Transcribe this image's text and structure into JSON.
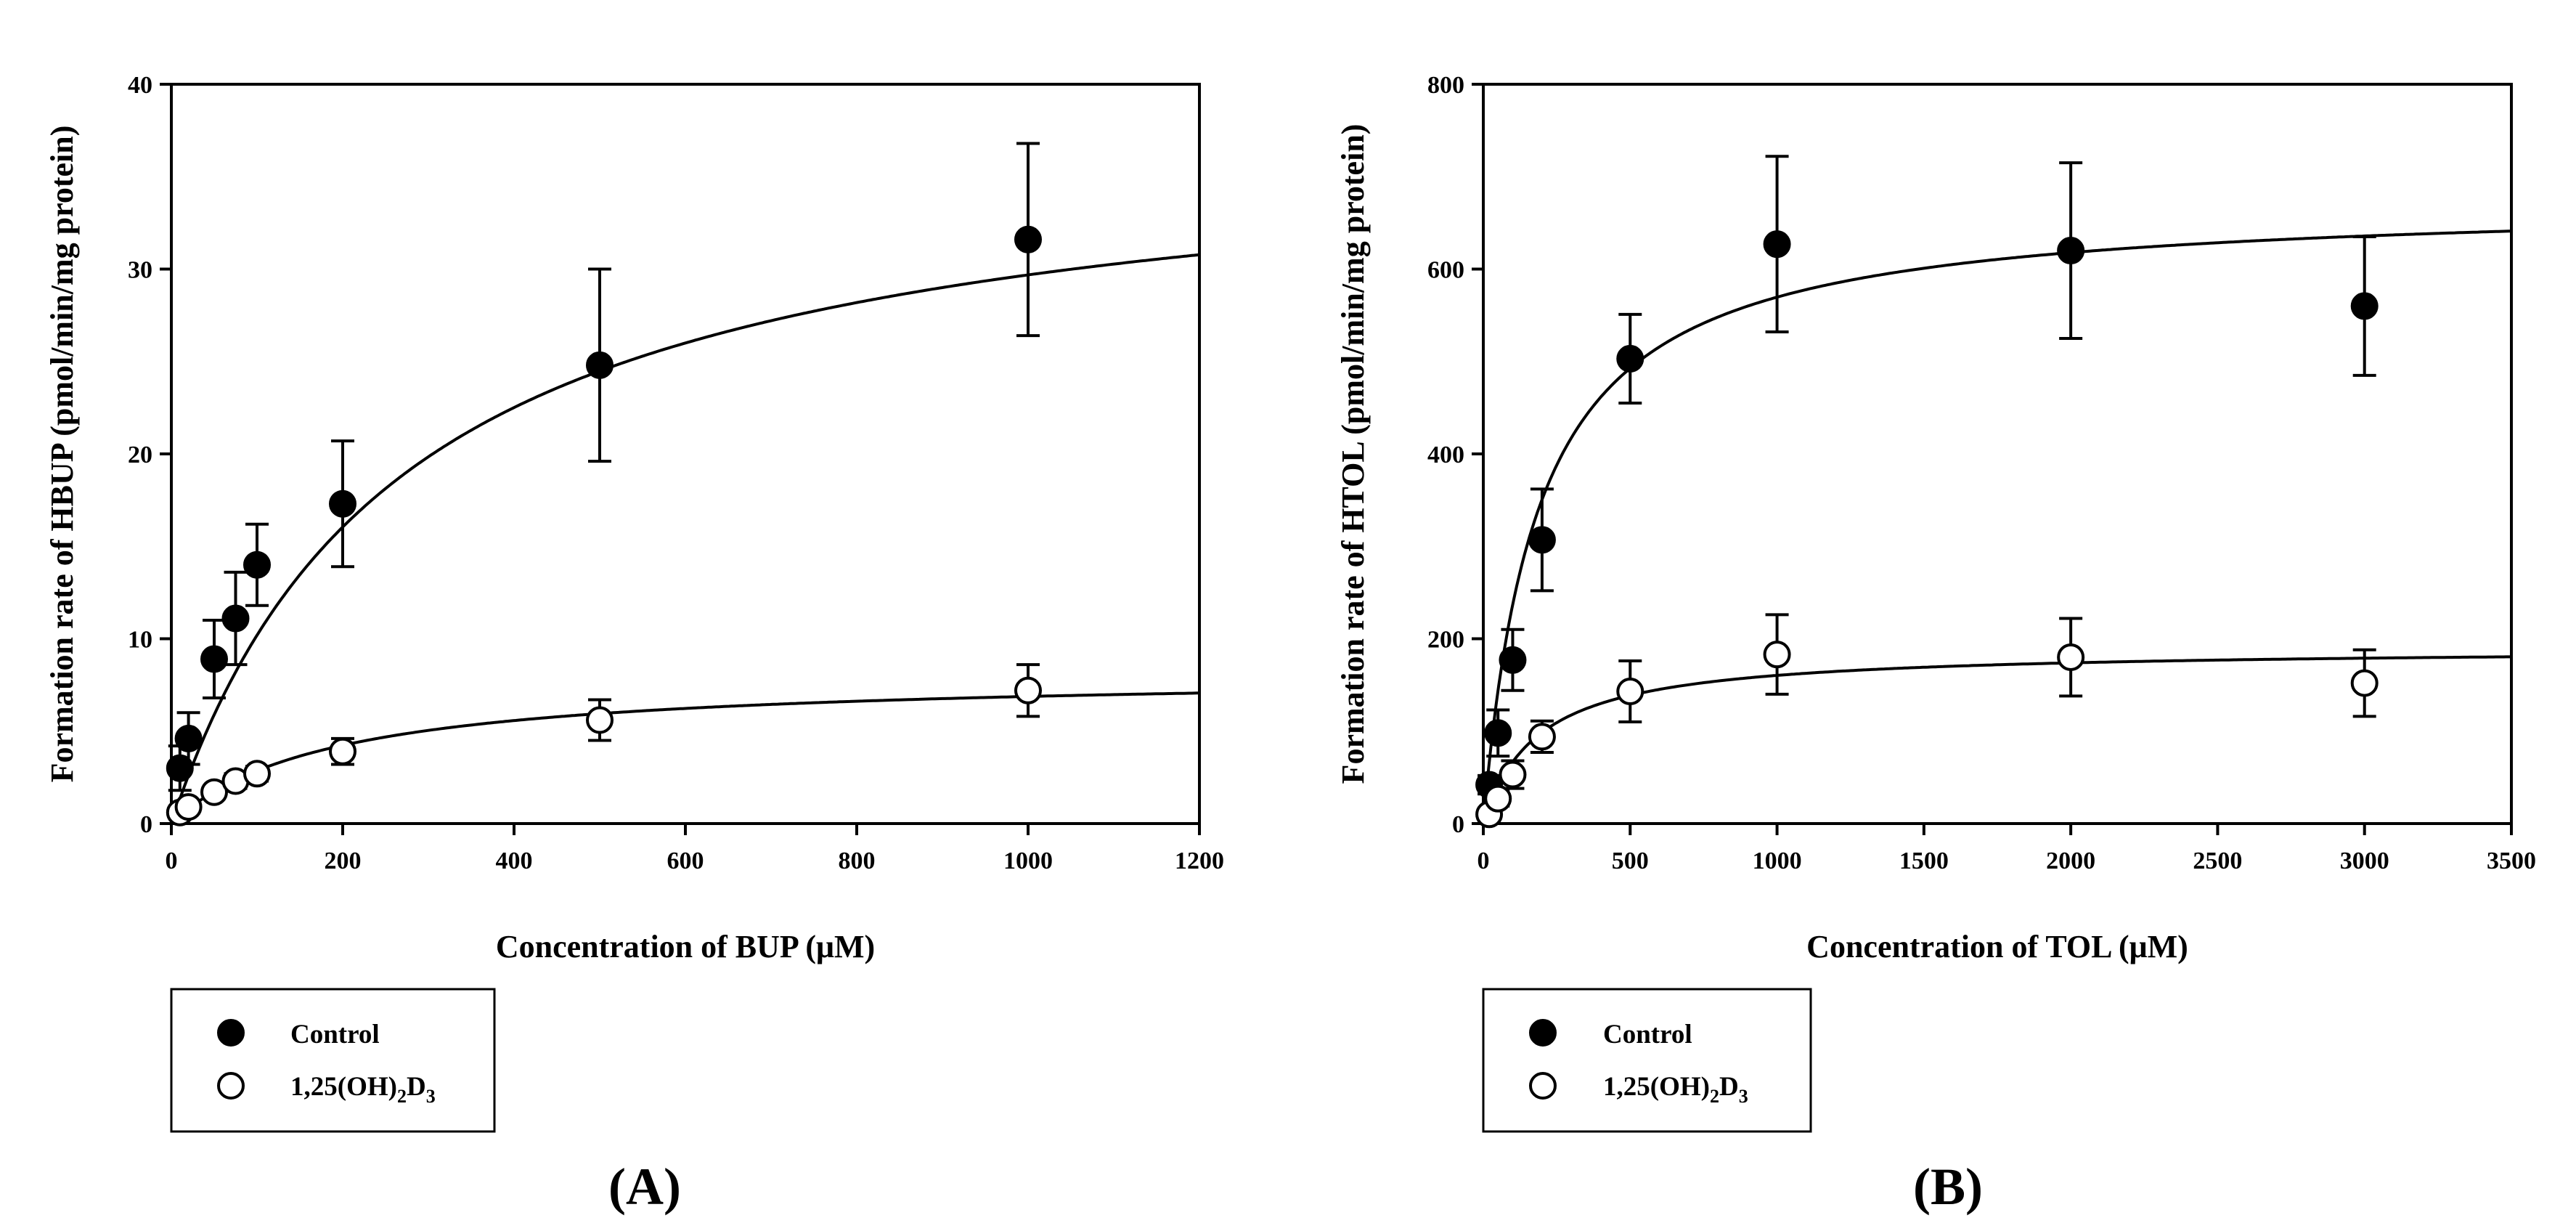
{
  "chart_data": [
    {
      "type": "scatter",
      "panel_label": "(A)",
      "xlabel": "Concentration of BUP (μM)",
      "ylabel": "Formation rate of HBUP (pmol/min/mg protein)",
      "xlim": [
        0,
        1200
      ],
      "ylim": [
        0,
        40
      ],
      "xticks": [
        0,
        200,
        400,
        600,
        800,
        1000,
        1200
      ],
      "yticks": [
        0,
        10,
        20,
        30,
        40
      ],
      "grid": false,
      "legend_placement": "below",
      "series": [
        {
          "name": "Control",
          "marker": "filled-circle",
          "x": [
            10,
            20,
            50,
            75,
            100,
            200,
            500,
            1000
          ],
          "y": [
            3.0,
            4.6,
            8.9,
            11.1,
            14.0,
            17.3,
            24.8,
            31.6
          ],
          "err": [
            1.2,
            1.4,
            2.1,
            2.5,
            2.2,
            3.4,
            5.2,
            5.2
          ],
          "fit": {
            "model": "michaelis-menten",
            "vmax": 37.7,
            "km": 270
          }
        },
        {
          "name": "1,25(OH)2D3",
          "marker": "open-circle",
          "x": [
            10,
            20,
            50,
            75,
            100,
            200,
            500,
            1000
          ],
          "y": [
            0.6,
            0.9,
            1.7,
            2.3,
            2.7,
            3.9,
            5.6,
            7.2
          ],
          "err": [
            0.2,
            0.3,
            0.3,
            0.4,
            0.4,
            0.7,
            1.1,
            1.4
          ],
          "fit": {
            "model": "michaelis-menten",
            "vmax": 8.15,
            "km": 185
          }
        }
      ]
    },
    {
      "type": "scatter",
      "panel_label": "(B)",
      "xlabel": "Concentration of TOL (μM)",
      "ylabel": "Formation rate of HTOL (pmol/min/mg protein)",
      "xlim": [
        0,
        3500
      ],
      "ylim": [
        0,
        800
      ],
      "xticks": [
        0,
        500,
        1000,
        1500,
        2000,
        2500,
        3000,
        3500
      ],
      "yticks": [
        0,
        200,
        400,
        600,
        800
      ],
      "grid": false,
      "legend_placement": "below",
      "series": [
        {
          "name": "Control",
          "marker": "filled-circle",
          "x": [
            20,
            50,
            100,
            200,
            500,
            1000,
            2000,
            3000
          ],
          "y": [
            42,
            98,
            177,
            307,
            503,
            627,
            620,
            560
          ],
          "err": [
            10,
            25,
            33,
            55,
            48,
            95,
            95,
            75
          ],
          "fit": {
            "model": "michaelis-menten",
            "vmax": 675,
            "km": 185
          }
        },
        {
          "name": "1,25(OH)2D3",
          "marker": "open-circle",
          "x": [
            20,
            50,
            100,
            200,
            500,
            1000,
            2000,
            3000
          ],
          "y": [
            10,
            27,
            53,
            94,
            143,
            183,
            180,
            152
          ],
          "err": [
            4,
            8,
            15,
            17,
            33,
            43,
            42,
            36
          ],
          "fit": {
            "model": "michaelis-menten",
            "vmax": 190,
            "km": 185
          }
        }
      ]
    }
  ],
  "legend": {
    "control_label": "Control",
    "treated_label_main": "1,25(OH)",
    "treated_label_sub1": "2",
    "treated_label_mid": "D",
    "treated_label_sub2": "3"
  }
}
